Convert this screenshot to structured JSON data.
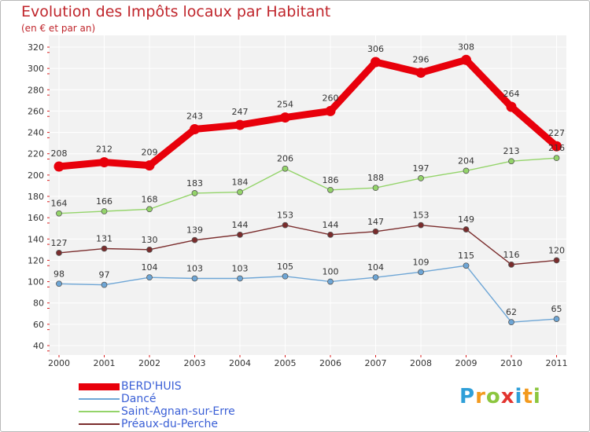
{
  "title": "Evolution des Impôts locaux par Habitant",
  "subtitle": "(en € et par an)",
  "brand": {
    "letters": [
      "P",
      "r",
      "o",
      "x",
      "i",
      "t",
      "i"
    ],
    "colors": [
      "#2f9fd8",
      "#f39a1e",
      "#8cc63f",
      "#e2342f",
      "#2f9fd8",
      "#f39a1e",
      "#8cc63f"
    ]
  },
  "chart_data": {
    "type": "line",
    "x": [
      "2000",
      "2001",
      "2002",
      "2003",
      "2004",
      "2005",
      "2006",
      "2007",
      "2008",
      "2009",
      "2010",
      "2011"
    ],
    "ylim": [
      40,
      320
    ],
    "yticks": [
      "40",
      "60",
      "80",
      "100",
      "120",
      "140",
      "160",
      "180",
      "200",
      "220",
      "240",
      "260",
      "280",
      "300",
      "320"
    ],
    "grid": true,
    "legend": "bottom-left",
    "series": [
      {
        "name": "BERD'HUIS",
        "color": "#e8000b",
        "bold": true,
        "values": [
          208,
          212,
          209,
          243,
          247,
          254,
          260,
          306,
          296,
          308,
          264,
          227
        ]
      },
      {
        "name": "Dancé",
        "color": "#6ea6d6",
        "bold": false,
        "values": [
          98,
          97,
          104,
          103,
          103,
          105,
          100,
          104,
          109,
          115,
          62,
          65
        ]
      },
      {
        "name": "Saint-Agnan-sur-Erre",
        "color": "#94d46a",
        "bold": false,
        "values": [
          164,
          166,
          168,
          183,
          184,
          206,
          186,
          188,
          197,
          204,
          213,
          216
        ]
      },
      {
        "name": "Préaux-du-Perche",
        "color": "#7a2c2c",
        "bold": false,
        "values": [
          127,
          131,
          130,
          139,
          144,
          153,
          144,
          147,
          153,
          149,
          116,
          120
        ]
      }
    ],
    "point_labels": [
      [
        "208",
        "212",
        "209",
        "243",
        "247",
        "254",
        "260",
        "306",
        "296",
        "308",
        "264",
        "227"
      ],
      [
        "98",
        "97",
        "104",
        "103",
        "103",
        "105",
        "100",
        "104",
        "109",
        "115",
        "62",
        "65"
      ],
      [
        "164",
        "166",
        "168",
        "183",
        "184",
        "206",
        "186",
        "188",
        "197",
        "204",
        "213",
        "216"
      ],
      [
        "127",
        "131",
        "130",
        "139",
        "144",
        "153",
        "144",
        "147",
        "153",
        "149",
        "116",
        "120"
      ]
    ]
  }
}
